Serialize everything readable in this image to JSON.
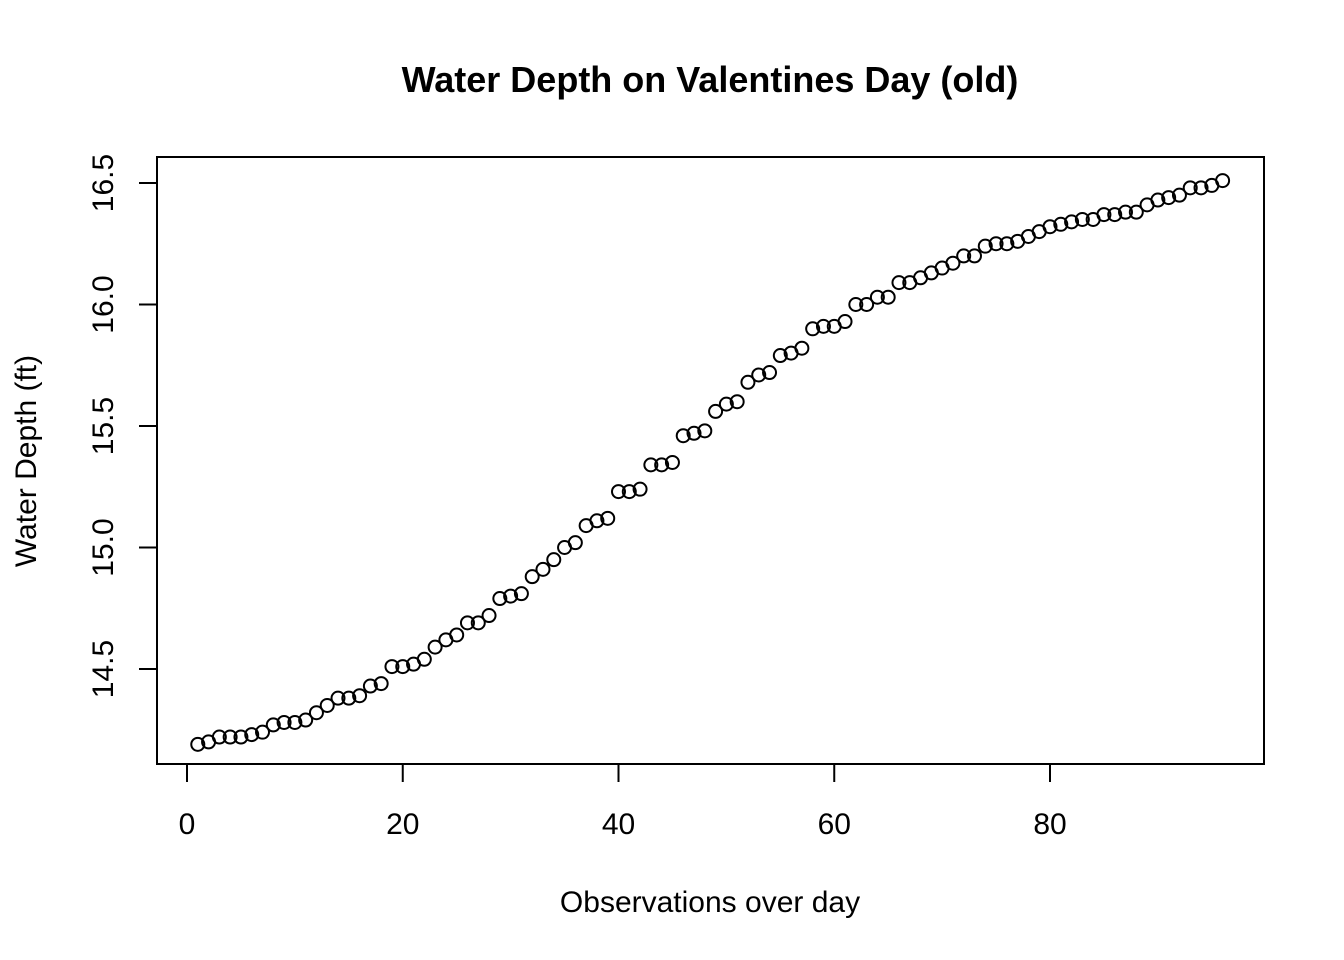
{
  "chart_data": {
    "type": "scatter",
    "title": "Water Depth on Valentines Day (old)",
    "xlabel": "Observations over day",
    "ylabel": "Water Depth (ft)",
    "xlim": [
      1,
      96
    ],
    "ylim": [
      14.19,
      16.51
    ],
    "xticks": [
      0,
      20,
      40,
      60,
      80
    ],
    "yticks": [
      14.5,
      15.0,
      15.5,
      16.0,
      16.5
    ],
    "xtick_labels": [
      "0",
      "20",
      "40",
      "60",
      "80"
    ],
    "ytick_labels": [
      "14.5",
      "15.0",
      "15.5",
      "16.0",
      "16.5"
    ],
    "grid": false,
    "legend": "none",
    "marker": "open-circle",
    "color": "#000000",
    "x": [
      1,
      2,
      3,
      4,
      5,
      6,
      7,
      8,
      9,
      10,
      11,
      12,
      13,
      14,
      15,
      16,
      17,
      18,
      19,
      20,
      21,
      22,
      23,
      24,
      25,
      26,
      27,
      28,
      29,
      30,
      31,
      32,
      33,
      34,
      35,
      36,
      37,
      38,
      39,
      40,
      41,
      42,
      43,
      44,
      45,
      46,
      47,
      48,
      49,
      50,
      51,
      52,
      53,
      54,
      55,
      56,
      57,
      58,
      59,
      60,
      61,
      62,
      63,
      64,
      65,
      66,
      67,
      68,
      69,
      70,
      71,
      72,
      73,
      74,
      75,
      76,
      77,
      78,
      79,
      80,
      81,
      82,
      83,
      84,
      85,
      86,
      87,
      88,
      89,
      90,
      91,
      92,
      93,
      94,
      95,
      96
    ],
    "y": [
      14.19,
      14.2,
      14.22,
      14.22,
      14.22,
      14.23,
      14.24,
      14.27,
      14.28,
      14.28,
      14.29,
      14.32,
      14.35,
      14.38,
      14.38,
      14.39,
      14.43,
      14.44,
      14.51,
      14.51,
      14.52,
      14.54,
      14.59,
      14.62,
      14.64,
      14.69,
      14.69,
      14.72,
      14.79,
      14.8,
      14.81,
      14.88,
      14.91,
      14.95,
      15.0,
      15.02,
      15.09,
      15.11,
      15.12,
      15.23,
      15.23,
      15.24,
      15.34,
      15.34,
      15.35,
      15.46,
      15.47,
      15.48,
      15.56,
      15.59,
      15.6,
      15.68,
      15.71,
      15.72,
      15.79,
      15.8,
      15.82,
      15.9,
      15.91,
      15.91,
      15.93,
      16.0,
      16.0,
      16.03,
      16.03,
      16.09,
      16.09,
      16.11,
      16.13,
      16.15,
      16.17,
      16.2,
      16.2,
      16.24,
      16.25,
      16.25,
      16.26,
      16.28,
      16.3,
      16.32,
      16.33,
      16.34,
      16.35,
      16.35,
      16.37,
      16.37,
      16.38,
      16.38,
      16.41,
      16.43,
      16.44,
      16.45,
      16.48,
      16.48,
      16.49,
      16.51
    ]
  }
}
